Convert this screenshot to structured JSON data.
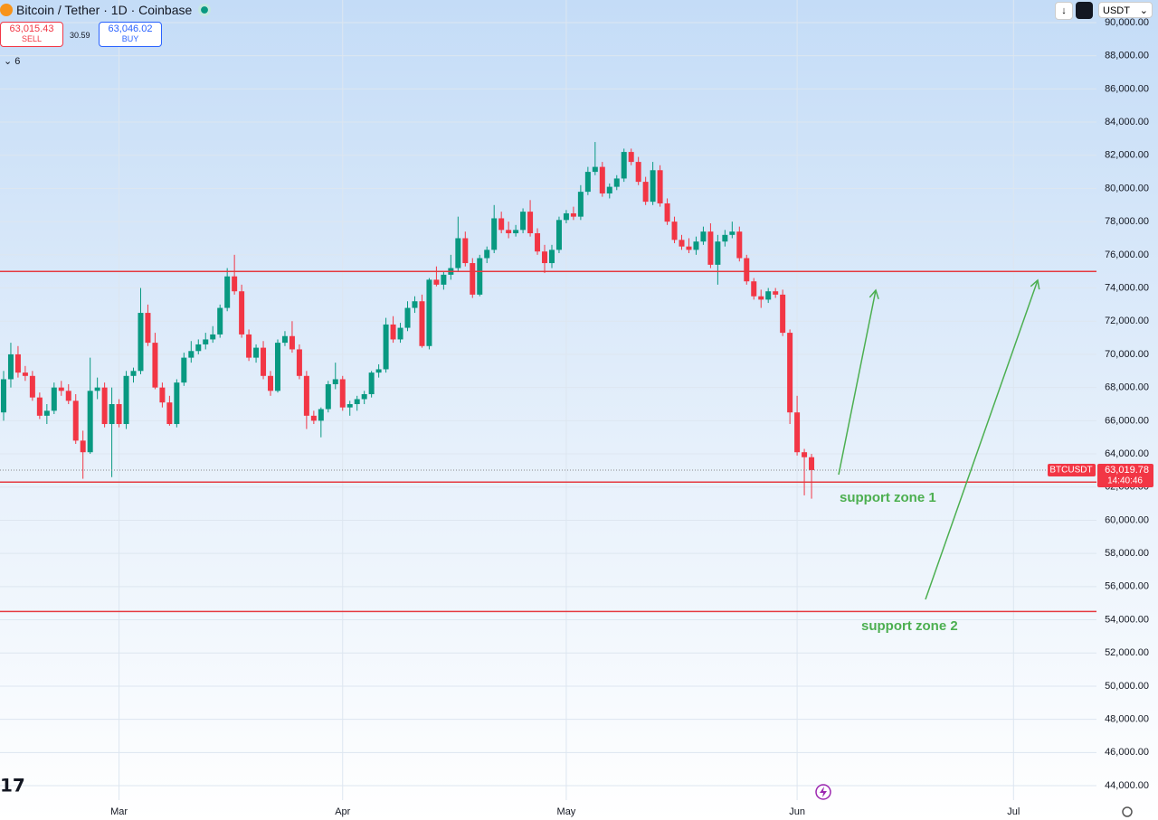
{
  "header": {
    "title": "Bitcoin / Tether · 1D · Coinbase",
    "sell_price": "63,015.43",
    "sell_label": "SELL",
    "spread": "30.59",
    "buy_price": "63,046.02",
    "buy_label": "BUY",
    "indicators": "6",
    "currency": "USDT"
  },
  "chart_data": {
    "type": "candlestick",
    "categories": [
      null,
      null,
      null,
      null,
      null,
      null,
      null,
      null,
      null,
      null,
      null,
      null,
      null,
      null,
      null,
      null,
      "Mar",
      null,
      null,
      null,
      null,
      null,
      null,
      null,
      null,
      null,
      null,
      null,
      null,
      null,
      null,
      null,
      null,
      null,
      null,
      null,
      null,
      null,
      null,
      null,
      null,
      null,
      null,
      null,
      null,
      null,
      null,
      "Apr",
      null,
      null,
      null,
      null,
      null,
      null,
      null,
      null,
      null,
      null,
      null,
      null,
      null,
      null,
      null,
      null,
      null,
      null,
      null,
      null,
      null,
      null,
      null,
      null,
      null,
      null,
      null,
      null,
      null,
      null,
      "May",
      null,
      null,
      null,
      null,
      null,
      null,
      null,
      null,
      null,
      null,
      null,
      null,
      null,
      null,
      null,
      null,
      null,
      null,
      null,
      null,
      null,
      null,
      null,
      null,
      null,
      null,
      null,
      null,
      null,
      null,
      null,
      "Jun",
      null,
      null,
      null,
      null,
      null,
      null,
      null,
      null,
      null,
      null,
      null,
      null,
      null,
      null,
      null,
      null,
      null,
      null,
      null,
      null,
      null,
      null,
      null,
      null,
      null,
      null,
      null,
      null,
      null,
      "Jul",
      null,
      null,
      null,
      null,
      null,
      null,
      null,
      null,
      null,
      null,
      null
    ],
    "ohlc": [
      [
        66500,
        69000,
        66000,
        68500
      ],
      [
        68500,
        70700,
        68000,
        70000
      ],
      [
        70000,
        70500,
        68600,
        68900
      ],
      [
        68900,
        69300,
        68400,
        68700
      ],
      [
        68700,
        69000,
        67200,
        67400
      ],
      [
        67400,
        67700,
        66100,
        66300
      ],
      [
        66300,
        67000,
        65800,
        66600
      ],
      [
        66600,
        68300,
        66400,
        68000
      ],
      [
        68000,
        68400,
        67500,
        67800
      ],
      [
        67800,
        68200,
        67000,
        67200
      ],
      [
        67200,
        67600,
        64600,
        64800
      ],
      [
        64800,
        65400,
        62500,
        64100
      ],
      [
        64100,
        69800,
        64000,
        67800
      ],
      [
        67800,
        68600,
        67300,
        68000
      ],
      [
        68000,
        68300,
        65600,
        65800
      ],
      [
        65800,
        68000,
        62600,
        67000
      ],
      [
        67000,
        67300,
        65600,
        65800
      ],
      [
        65800,
        69000,
        65500,
        68700
      ],
      [
        68700,
        69200,
        68300,
        69000
      ],
      [
        69000,
        74000,
        68800,
        72500
      ],
      [
        72500,
        73000,
        70500,
        70700
      ],
      [
        70700,
        71300,
        67900,
        68000
      ],
      [
        68000,
        68300,
        66800,
        67100
      ],
      [
        67100,
        67500,
        65700,
        65800
      ],
      [
        65800,
        68500,
        65600,
        68300
      ],
      [
        68300,
        70100,
        68100,
        69800
      ],
      [
        69800,
        70800,
        69500,
        70200
      ],
      [
        70200,
        70900,
        70000,
        70600
      ],
      [
        70600,
        71300,
        70300,
        70900
      ],
      [
        70900,
        71700,
        70700,
        71200
      ],
      [
        71200,
        73000,
        71000,
        72800
      ],
      [
        72800,
        75200,
        72600,
        74700
      ],
      [
        74700,
        76000,
        73600,
        73800
      ],
      [
        73800,
        74200,
        71000,
        71200
      ],
      [
        71200,
        71500,
        69600,
        69800
      ],
      [
        69800,
        70600,
        69500,
        70400
      ],
      [
        70400,
        70800,
        68500,
        68700
      ],
      [
        68700,
        69000,
        67500,
        67800
      ],
      [
        67800,
        70900,
        67700,
        70700
      ],
      [
        70700,
        71400,
        70500,
        71100
      ],
      [
        71100,
        72000,
        70100,
        70300
      ],
      [
        70300,
        70600,
        68500,
        68700
      ],
      [
        68700,
        69000,
        65500,
        66300
      ],
      [
        66300,
        66600,
        65800,
        66000
      ],
      [
        66000,
        66800,
        65000,
        66700
      ],
      [
        66700,
        68400,
        66500,
        68200
      ],
      [
        68200,
        69500,
        67900,
        68500
      ],
      [
        68500,
        68700,
        66600,
        66800
      ],
      [
        66800,
        67200,
        66300,
        67000
      ],
      [
        67000,
        67500,
        66600,
        67300
      ],
      [
        67300,
        67800,
        67000,
        67600
      ],
      [
        67600,
        69000,
        67400,
        68900
      ],
      [
        68900,
        69400,
        68600,
        69100
      ],
      [
        69100,
        72200,
        68900,
        71800
      ],
      [
        71800,
        72300,
        70700,
        70900
      ],
      [
        70900,
        71900,
        70700,
        71600
      ],
      [
        71600,
        73200,
        71400,
        72800
      ],
      [
        72800,
        73500,
        72500,
        73200
      ],
      [
        73200,
        73600,
        70400,
        70500
      ],
      [
        70500,
        74600,
        70300,
        74500
      ],
      [
        74500,
        75300,
        74100,
        74200
      ],
      [
        74200,
        75000,
        73900,
        74800
      ],
      [
        74800,
        76000,
        74500,
        75200
      ],
      [
        75200,
        78300,
        75000,
        77000
      ],
      [
        77000,
        77400,
        75300,
        75500
      ],
      [
        75500,
        75800,
        73400,
        73600
      ],
      [
        73600,
        76000,
        73500,
        75800
      ],
      [
        75800,
        76500,
        75500,
        76300
      ],
      [
        76300,
        79000,
        76100,
        78200
      ],
      [
        78200,
        78600,
        77300,
        77500
      ],
      [
        77500,
        78000,
        77000,
        77300
      ],
      [
        77300,
        77800,
        77100,
        77500
      ],
      [
        77500,
        78800,
        77300,
        78600
      ],
      [
        78600,
        79300,
        77100,
        77300
      ],
      [
        77300,
        77600,
        76000,
        76200
      ],
      [
        76200,
        76600,
        74900,
        75500
      ],
      [
        75500,
        76600,
        75200,
        76300
      ],
      [
        76300,
        78300,
        76100,
        78100
      ],
      [
        78100,
        78700,
        77900,
        78500
      ],
      [
        78500,
        78900,
        78100,
        78300
      ],
      [
        78300,
        80200,
        78100,
        79800
      ],
      [
        79800,
        81300,
        79600,
        81000
      ],
      [
        81000,
        82800,
        80800,
        81300
      ],
      [
        81300,
        81600,
        79500,
        79700
      ],
      [
        79700,
        80300,
        79400,
        80100
      ],
      [
        80100,
        80800,
        79900,
        80600
      ],
      [
        80600,
        82400,
        80400,
        82200
      ],
      [
        82200,
        82400,
        81400,
        81600
      ],
      [
        81600,
        81900,
        80200,
        80400
      ],
      [
        80400,
        80700,
        79000,
        79200
      ],
      [
        79200,
        81600,
        79000,
        81100
      ],
      [
        81100,
        81400,
        78900,
        79100
      ],
      [
        79100,
        79400,
        77800,
        78000
      ],
      [
        78000,
        78300,
        76700,
        76900
      ],
      [
        76900,
        77200,
        76300,
        76500
      ],
      [
        76500,
        77000,
        76100,
        76300
      ],
      [
        76300,
        77100,
        76000,
        76800
      ],
      [
        76800,
        77700,
        76600,
        77400
      ],
      [
        77400,
        77900,
        75200,
        75400
      ],
      [
        75400,
        77200,
        74200,
        76800
      ],
      [
        76800,
        77500,
        76500,
        77200
      ],
      [
        77200,
        78000,
        77000,
        77400
      ],
      [
        77400,
        77700,
        75600,
        75800
      ],
      [
        75800,
        76000,
        74200,
        74400
      ],
      [
        74400,
        74600,
        73300,
        73500
      ],
      [
        73500,
        73900,
        72800,
        73300
      ],
      [
        73300,
        74000,
        73100,
        73800
      ],
      [
        73800,
        74000,
        73400,
        73600
      ],
      [
        73600,
        73900,
        71100,
        71300
      ],
      [
        71300,
        71500,
        65800,
        66500
      ],
      [
        66500,
        67500,
        63900,
        64100
      ],
      [
        64100,
        64300,
        61500,
        63800
      ],
      [
        63800,
        64000,
        61300,
        63019.78
      ],
      null,
      null,
      null,
      null,
      null,
      null,
      null,
      null,
      null,
      null,
      null,
      null,
      null,
      null,
      null,
      null,
      null,
      null,
      null,
      null,
      null,
      null,
      null,
      null,
      null,
      null,
      null,
      null,
      null,
      null,
      null,
      null,
      null,
      null,
      null,
      null,
      null
    ],
    "up_color": "#089981",
    "down_color": "#f23645",
    "ylim": [
      43130,
      91360
    ],
    "yticks": [
      {
        "value": 44000,
        "label": "44,000.00"
      },
      {
        "value": 46000,
        "label": "46,000.00"
      },
      {
        "value": 48000,
        "label": "48,000.00"
      },
      {
        "value": 50000,
        "label": "50,000.00"
      },
      {
        "value": 52000,
        "label": "52,000.00"
      },
      {
        "value": 54000,
        "label": "54,000.00"
      },
      {
        "value": 56000,
        "label": "56,000.00"
      },
      {
        "value": 58000,
        "label": "58,000.00"
      },
      {
        "value": 60000,
        "label": "60,000.00"
      },
      {
        "value": 62000,
        "label": "62,000.00"
      },
      {
        "value": 64000,
        "label": "64,000.00"
      },
      {
        "value": 66000,
        "label": "66,000.00"
      },
      {
        "value": 68000,
        "label": "68,000.00"
      },
      {
        "value": 70000,
        "label": "70,000.00"
      },
      {
        "value": 72000,
        "label": "72,000.00"
      },
      {
        "value": 74000,
        "label": "74,000.00"
      },
      {
        "value": 76000,
        "label": "76,000.00"
      },
      {
        "value": 78000,
        "label": "78,000.00"
      },
      {
        "value": 80000,
        "label": "80,000.00"
      },
      {
        "value": 82000,
        "label": "82,000.00"
      },
      {
        "value": 84000,
        "label": "84,000.00"
      },
      {
        "value": 86000,
        "label": "86,000.00"
      },
      {
        "value": 88000,
        "label": "88,000.00"
      },
      {
        "value": 90000,
        "label": "90,000.00"
      }
    ],
    "grid": true,
    "levels": [
      {
        "value": 75000
      },
      {
        "value": 62300
      },
      {
        "value": 54500
      }
    ],
    "level_color": "#e5393f",
    "annotations": [
      {
        "text": "support zone 1"
      },
      {
        "text": "support zone 2"
      }
    ],
    "annotation_color": "#4caf50",
    "last_price": {
      "symbol": "BTCUSDT",
      "value": 63019.78,
      "label": "63,019.78",
      "countdown": "14:40:46"
    }
  }
}
